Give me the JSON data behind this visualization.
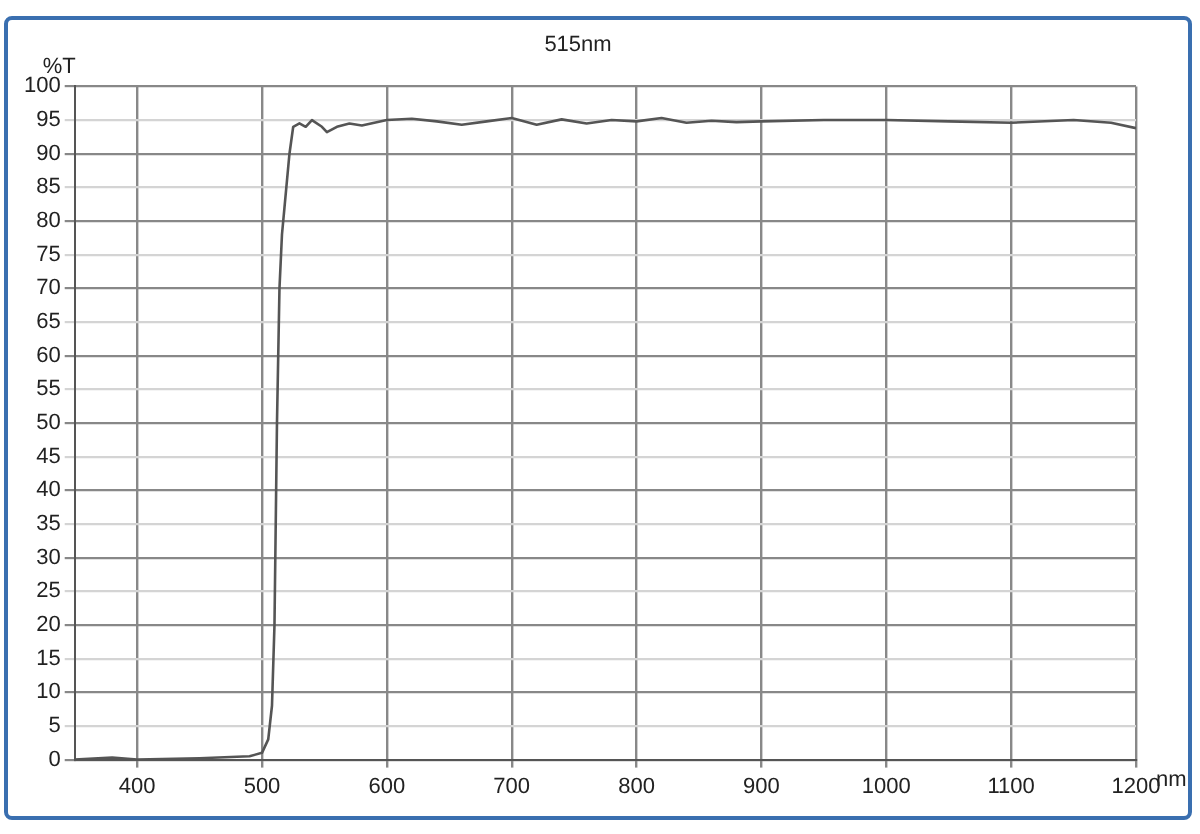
{
  "chart_data": {
    "type": "line",
    "title": "515nm",
    "xlabel": "nm",
    "ylabel": "%T",
    "x": [
      350,
      380,
      400,
      450,
      490,
      500,
      505,
      508,
      510,
      512,
      514,
      516,
      518,
      522,
      525,
      530,
      535,
      540,
      548,
      552,
      560,
      570,
      580,
      600,
      620,
      640,
      660,
      680,
      700,
      720,
      740,
      760,
      780,
      800,
      820,
      840,
      860,
      880,
      900,
      950,
      1000,
      1050,
      1100,
      1150,
      1180,
      1200
    ],
    "series": [
      {
        "color": "#555555",
        "values": [
          0,
          0.3,
          0,
          0.2,
          0.5,
          1,
          3,
          8,
          20,
          50,
          70,
          78,
          82,
          90,
          94,
          94.5,
          94,
          95,
          94,
          93.2,
          94,
          94.5,
          94.2,
          95,
          95.2,
          94.8,
          94.3,
          94.8,
          95.3,
          94.3,
          95.1,
          94.5,
          95,
          94.8,
          95.3,
          94.6,
          94.9,
          94.7,
          94.8,
          95,
          95,
          94.8,
          94.6,
          95,
          94.6,
          93.8
        ]
      }
    ],
    "xlim": [
      350,
      1200
    ],
    "xticks": [
      400,
      500,
      600,
      700,
      800,
      900,
      1000,
      1100,
      1200
    ],
    "ylim": [
      0,
      100
    ],
    "yticks": [
      0,
      5,
      10,
      15,
      20,
      25,
      30,
      35,
      40,
      45,
      50,
      55,
      60,
      65,
      70,
      75,
      80,
      85,
      90,
      95,
      100
    ],
    "grid": true,
    "legend": false,
    "marker": "none",
    "line_style": "solid"
  }
}
